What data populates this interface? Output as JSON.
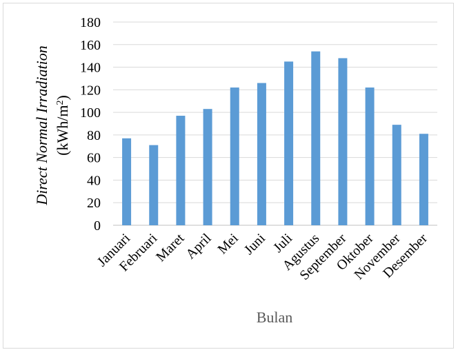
{
  "chart_data": {
    "type": "bar",
    "categories": [
      "Januari",
      "Februari",
      "Maret",
      "April",
      "Mei",
      "Juni",
      "Juli",
      "Agustus",
      "September",
      "Oktober",
      "November",
      "Desember"
    ],
    "values": [
      77,
      71,
      97,
      103,
      122,
      126,
      145,
      154,
      148,
      122,
      89,
      81
    ],
    "xlabel": "Bulan",
    "ylabel_line1": "Direct Normal Irradiation",
    "ylabel_line2": "(kWh/m",
    "ylabel_sup": "2",
    "ylabel_close": ")",
    "ylim": [
      0,
      180
    ],
    "yticks": [
      "0",
      "20",
      "40",
      "60",
      "80",
      "100",
      "120",
      "140",
      "160",
      "180"
    ],
    "grid": true,
    "bar_color": "#5b9bd5"
  }
}
